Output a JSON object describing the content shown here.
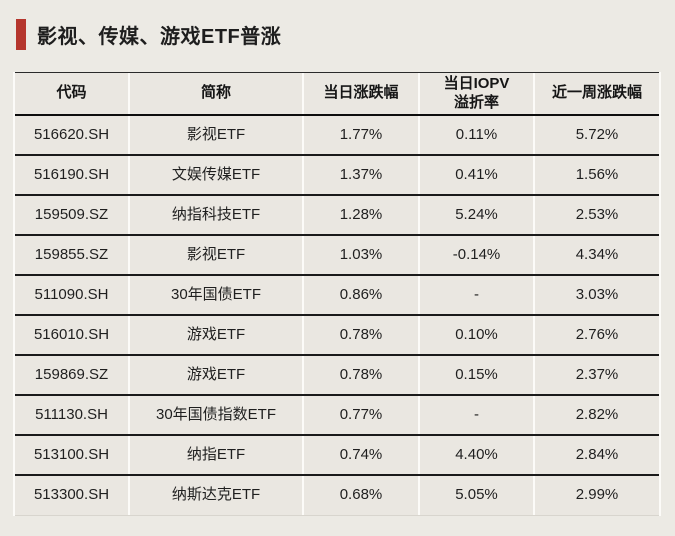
{
  "page": {
    "background_color": "#ECEAE4",
    "accent_color": "#B5362D"
  },
  "title": "影视、传媒、游戏ETF普涨",
  "chart_data": {
    "type": "table",
    "title": "影视、传媒、游戏ETF普涨",
    "columns": [
      "代码",
      "简称",
      "当日涨跌幅",
      "当日IOPV\n溢折率",
      "近一周涨跌幅"
    ],
    "rows": [
      [
        "516620.SH",
        "影视ETF",
        "1.77%",
        "0.11%",
        "5.72%"
      ],
      [
        "516190.SH",
        "文娱传媒ETF",
        "1.37%",
        "0.41%",
        "1.56%"
      ],
      [
        "159509.SZ",
        "纳指科技ETF",
        "1.28%",
        "5.24%",
        "2.53%"
      ],
      [
        "159855.SZ",
        "影视ETF",
        "1.03%",
        "-0.14%",
        "4.34%"
      ],
      [
        "511090.SH",
        "30年国债ETF",
        "0.86%",
        "-",
        "3.03%"
      ],
      [
        "516010.SH",
        "游戏ETF",
        "0.78%",
        "0.10%",
        "2.76%"
      ],
      [
        "159869.SZ",
        "游戏ETF",
        "0.78%",
        "0.15%",
        "2.37%"
      ],
      [
        "511130.SH",
        "30年国债指数ETF",
        "0.77%",
        "-",
        "2.82%"
      ],
      [
        "513100.SH",
        "纳指ETF",
        "0.74%",
        "4.40%",
        "2.84%"
      ],
      [
        "513300.SH",
        "纳斯达克ETF",
        "0.68%",
        "5.05%",
        "2.99%"
      ]
    ]
  }
}
